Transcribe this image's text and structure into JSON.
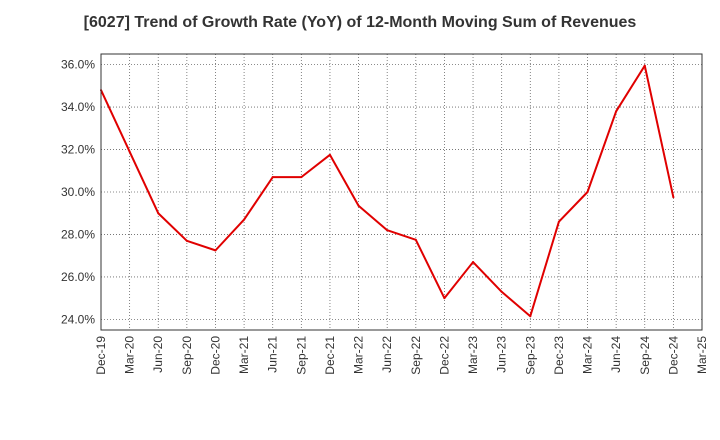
{
  "chart_data": {
    "type": "line",
    "title": "[6027]  Trend of Growth Rate (YoY) of 12-Month Moving Sum of Revenues",
    "xlabel": "",
    "ylabel": "",
    "grid": true,
    "legend": "none",
    "categories": [
      "Dec-19",
      "Mar-20",
      "Jun-20",
      "Sep-20",
      "Dec-20",
      "Mar-21",
      "Jun-21",
      "Sep-21",
      "Dec-21",
      "Mar-22",
      "Jun-22",
      "Sep-22",
      "Dec-22",
      "Mar-23",
      "Jun-23",
      "Sep-23",
      "Dec-23",
      "Mar-24",
      "Jun-24",
      "Sep-24",
      "Dec-24",
      "Mar-25"
    ],
    "y_ticks": [
      "24.0%",
      "26.0%",
      "28.0%",
      "30.0%",
      "32.0%",
      "34.0%",
      "36.0%"
    ],
    "y_tick_values": [
      24,
      26,
      28,
      30,
      32,
      34,
      36
    ],
    "ylim": [
      23.5,
      36.5
    ],
    "series": [
      {
        "color": "#e00000",
        "values": [
          34.8,
          31.9,
          29.0,
          27.7,
          27.25,
          28.7,
          30.7,
          30.7,
          31.75,
          29.35,
          28.2,
          27.75,
          25.0,
          26.7,
          25.3,
          24.15,
          28.6,
          30.0,
          33.8,
          35.95,
          29.75,
          null
        ]
      }
    ]
  }
}
